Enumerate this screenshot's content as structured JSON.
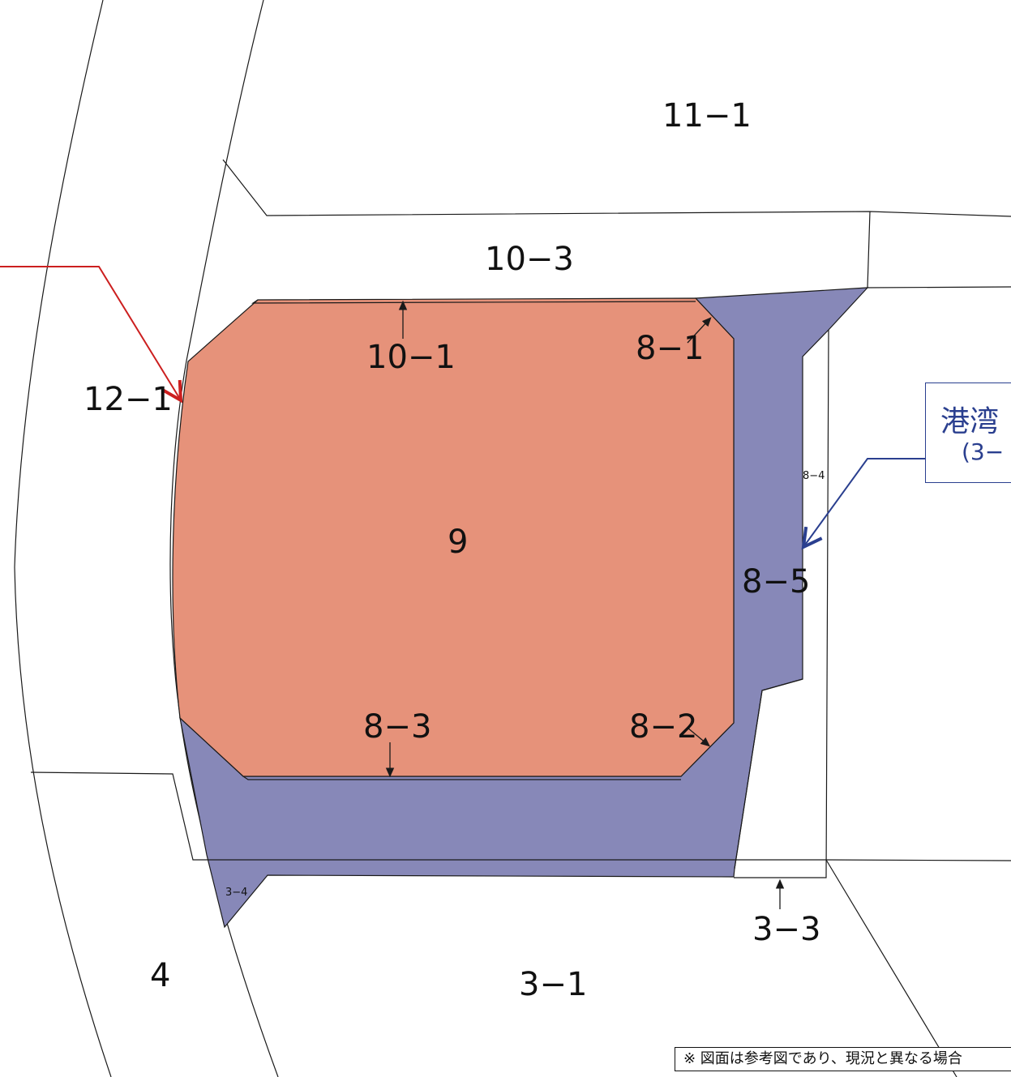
{
  "parcels": {
    "p11_1": "11−1",
    "p10_3": "10−3",
    "p10_1": "10−1",
    "p8_1": "8−1",
    "p12_1": "12−1",
    "p9": "9",
    "p8_4": "8−4",
    "p8_5": "8−5",
    "p8_3": "8−3",
    "p8_2": "8−2",
    "p3_4": "3−4",
    "p3_3": "3−3",
    "p4": "4",
    "p3_1": "3−1"
  },
  "callout": {
    "line1": "港湾",
    "line2": "(3−"
  },
  "note": "※ 図面は参考図であり、現況と異なる場合",
  "colors": {
    "parcel_9_fill": "#e6927a",
    "harbor_fill": "#8788b8",
    "callout_color": "#2a3f8f",
    "red_arrow": "#cc1f1f"
  }
}
